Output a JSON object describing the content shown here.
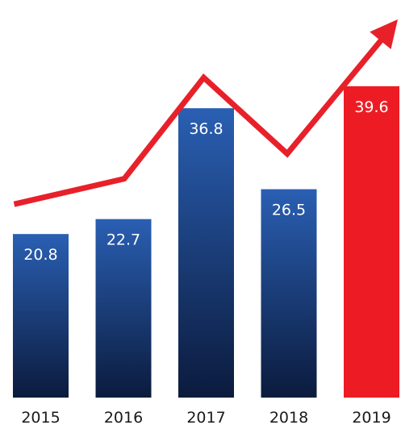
{
  "chart_data": {
    "type": "bar",
    "categories": [
      "2015",
      "2016",
      "2017",
      "2018",
      "2019"
    ],
    "values": [
      20.8,
      22.7,
      36.8,
      26.5,
      39.6
    ],
    "value_labels": [
      "20.8",
      "22.7",
      "36.8",
      "26.5",
      "39.6"
    ],
    "highlight_index": 4,
    "overlay": {
      "type": "line",
      "arrowhead": "end",
      "color": "#e8202a"
    },
    "title": "",
    "xlabel": "",
    "ylabel": "",
    "ylim": [
      0,
      42
    ],
    "grid": false,
    "legend": "none",
    "colors": {
      "bar_top": "#2a5fb3",
      "bar_bottom": "#0b1b3d",
      "highlight": "#ed1c24",
      "line": "#e8202a",
      "label": "#ffffff",
      "tick": "#1a1a1a"
    }
  }
}
